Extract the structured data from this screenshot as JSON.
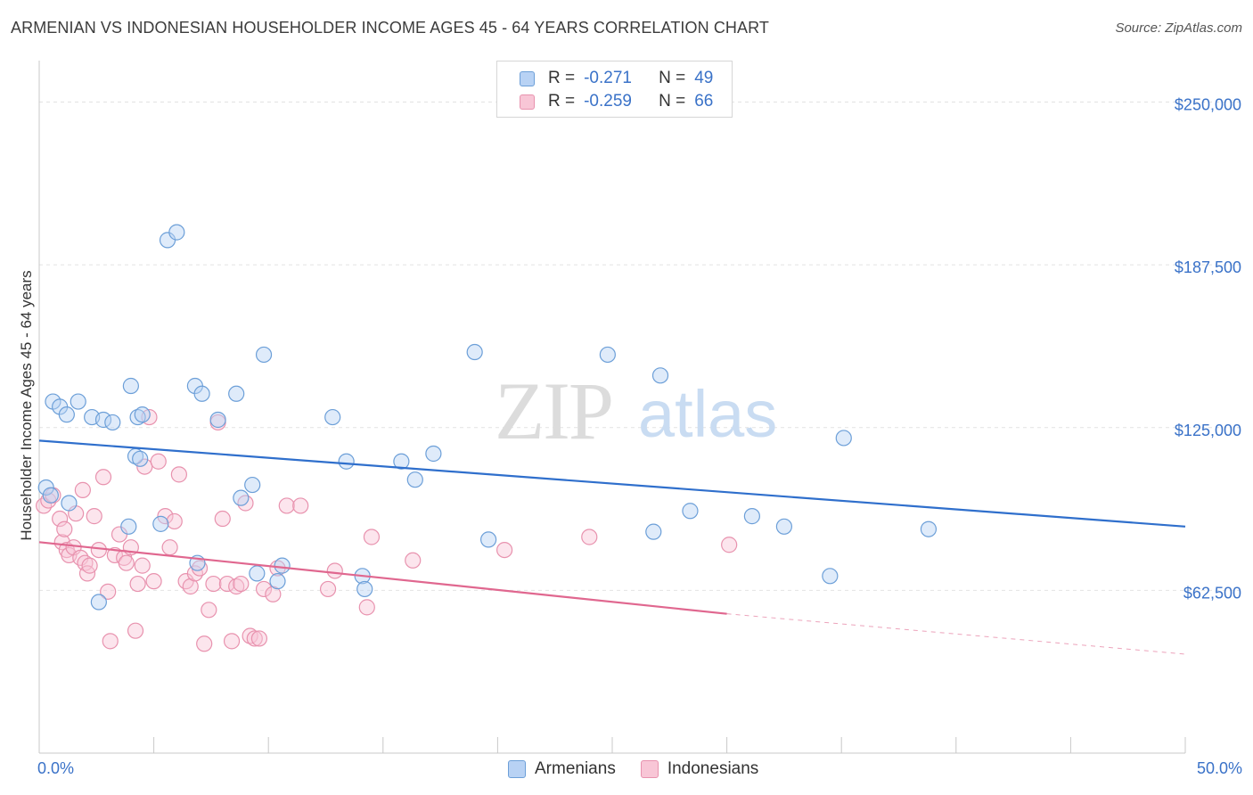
{
  "title": "ARMENIAN VS INDONESIAN HOUSEHOLDER INCOME AGES 45 - 64 YEARS CORRELATION CHART",
  "source": "Source: ZipAtlas.com",
  "watermark": {
    "zip": "ZIP",
    "atlas": "atlas"
  },
  "legend": {
    "armenians": {
      "r_label": "R =",
      "r_value": "-0.271",
      "n_label": "N =",
      "n_value": "49"
    },
    "indonesians": {
      "r_label": "R =",
      "r_value": "-0.259",
      "n_label": "N =",
      "n_value": "66"
    }
  },
  "chart_data": {
    "type": "scatter",
    "title": "ARMENIAN VS INDONESIAN HOUSEHOLDER INCOME AGES 45 - 64 YEARS CORRELATION CHART",
    "xlabel": "",
    "ylabel": "Householder Income Ages 45 - 64 years",
    "xlim": [
      0,
      50
    ],
    "ylim": [
      0,
      262500
    ],
    "x_tick_labels": [
      "0.0%",
      "50.0%"
    ],
    "y_ticks": [
      62500,
      125000,
      187500,
      250000
    ],
    "y_tick_labels": [
      "$62,500",
      "$125,000",
      "$187,500",
      "$250,000"
    ],
    "grid": true,
    "legend_position": "top-center",
    "colors": {
      "armenians": "#6c9fd8",
      "armenians_fill": "#b8d2f4",
      "armenians_line": "#2f6fcc",
      "indonesians": "#e892ae",
      "indonesians_fill": "#f8c6d6",
      "indonesians_line": "#e0678f"
    },
    "series": [
      {
        "name": "Armenians",
        "points": [
          [
            0.3,
            102000
          ],
          [
            0.5,
            99000
          ],
          [
            0.6,
            135000
          ],
          [
            0.9,
            133000
          ],
          [
            1.2,
            130000
          ],
          [
            1.7,
            135000
          ],
          [
            1.3,
            96000
          ],
          [
            2.3,
            129000
          ],
          [
            2.8,
            128000
          ],
          [
            3.2,
            127000
          ],
          [
            2.6,
            58000
          ],
          [
            3.9,
            87000
          ],
          [
            4.3,
            129000
          ],
          [
            4.5,
            130000
          ],
          [
            4.0,
            141000
          ],
          [
            4.2,
            114000
          ],
          [
            4.4,
            113000
          ],
          [
            5.3,
            88000
          ],
          [
            5.6,
            197000
          ],
          [
            6.0,
            200000
          ],
          [
            6.8,
            141000
          ],
          [
            7.1,
            138000
          ],
          [
            6.9,
            73000
          ],
          [
            7.8,
            128000
          ],
          [
            8.6,
            138000
          ],
          [
            8.8,
            98000
          ],
          [
            9.3,
            103000
          ],
          [
            9.5,
            69000
          ],
          [
            9.8,
            153000
          ],
          [
            10.4,
            66000
          ],
          [
            10.6,
            72000
          ],
          [
            12.8,
            129000
          ],
          [
            13.4,
            112000
          ],
          [
            14.1,
            68000
          ],
          [
            14.2,
            63000
          ],
          [
            15.8,
            112000
          ],
          [
            16.4,
            105000
          ],
          [
            17.2,
            115000
          ],
          [
            19.0,
            154000
          ],
          [
            19.6,
            82000
          ],
          [
            24.8,
            153000
          ],
          [
            26.8,
            85000
          ],
          [
            27.1,
            145000
          ],
          [
            28.4,
            93000
          ],
          [
            31.1,
            91000
          ],
          [
            32.5,
            87000
          ],
          [
            34.5,
            68000
          ],
          [
            35.1,
            121000
          ],
          [
            38.8,
            86000
          ]
        ]
      },
      {
        "name": "Indonesians",
        "points": [
          [
            0.2,
            95000
          ],
          [
            0.4,
            97000
          ],
          [
            0.6,
            99000
          ],
          [
            0.9,
            90000
          ],
          [
            1.0,
            81000
          ],
          [
            1.1,
            86000
          ],
          [
            1.2,
            78000
          ],
          [
            1.3,
            76000
          ],
          [
            1.5,
            79000
          ],
          [
            1.6,
            92000
          ],
          [
            1.8,
            75000
          ],
          [
            1.9,
            101000
          ],
          [
            2.0,
            73000
          ],
          [
            2.1,
            69000
          ],
          [
            2.2,
            72000
          ],
          [
            2.4,
            91000
          ],
          [
            2.6,
            78000
          ],
          [
            2.8,
            106000
          ],
          [
            3.0,
            62000
          ],
          [
            3.1,
            43000
          ],
          [
            3.3,
            76000
          ],
          [
            3.5,
            84000
          ],
          [
            3.7,
            75000
          ],
          [
            3.8,
            73000
          ],
          [
            4.0,
            79000
          ],
          [
            4.2,
            47000
          ],
          [
            4.3,
            65000
          ],
          [
            4.5,
            72000
          ],
          [
            4.6,
            110000
          ],
          [
            4.8,
            129000
          ],
          [
            5.0,
            66000
          ],
          [
            5.2,
            112000
          ],
          [
            5.5,
            91000
          ],
          [
            5.7,
            79000
          ],
          [
            5.9,
            89000
          ],
          [
            6.1,
            107000
          ],
          [
            6.4,
            66000
          ],
          [
            6.6,
            64000
          ],
          [
            6.8,
            69000
          ],
          [
            7.0,
            71000
          ],
          [
            7.2,
            42000
          ],
          [
            7.4,
            55000
          ],
          [
            7.6,
            65000
          ],
          [
            7.8,
            127000
          ],
          [
            8.0,
            90000
          ],
          [
            8.2,
            65000
          ],
          [
            8.4,
            43000
          ],
          [
            8.6,
            64000
          ],
          [
            8.8,
            65000
          ],
          [
            9.0,
            96000
          ],
          [
            9.2,
            45000
          ],
          [
            9.4,
            44000
          ],
          [
            9.6,
            44000
          ],
          [
            9.8,
            63000
          ],
          [
            10.2,
            61000
          ],
          [
            10.4,
            71000
          ],
          [
            10.8,
            95000
          ],
          [
            11.4,
            95000
          ],
          [
            12.6,
            63000
          ],
          [
            12.9,
            70000
          ],
          [
            14.3,
            56000
          ],
          [
            14.5,
            83000
          ],
          [
            16.3,
            74000
          ],
          [
            20.3,
            78000
          ],
          [
            24.0,
            83000
          ],
          [
            30.1,
            80000
          ]
        ]
      }
    ],
    "trendlines": [
      {
        "name": "Armenians",
        "x": [
          0,
          50
        ],
        "y": [
          120000,
          87000
        ]
      },
      {
        "name": "Indonesians",
        "x": [
          0,
          30
        ],
        "y": [
          81000,
          53500
        ],
        "dashed_extension_to": [
          50,
          38000
        ]
      }
    ]
  }
}
